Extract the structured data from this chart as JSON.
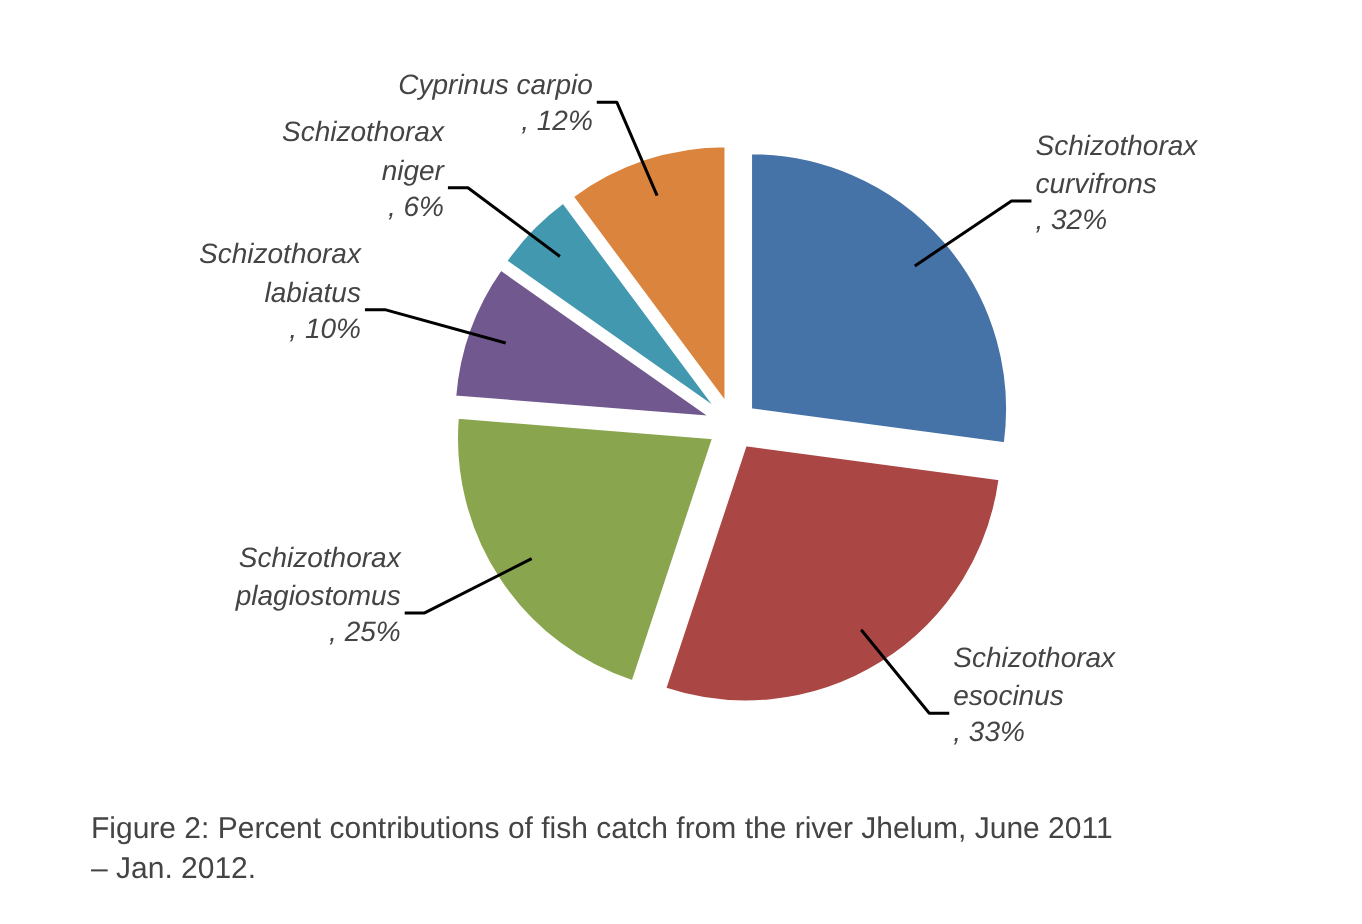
{
  "chart_data": {
    "type": "pie",
    "categories": [
      "Schizothorax curvifrons",
      "Schizothorax esocinus",
      "Schizothorax plagiostomus",
      "Schizothorax labiatus",
      "Schizothorax niger",
      "Cyprinus carpio"
    ],
    "values": [
      32,
      33,
      25,
      10,
      6,
      12
    ],
    "colors": [
      "#4572a7",
      "#aa4643",
      "#89a54e",
      "#71588f",
      "#4198af",
      "#db843d"
    ],
    "value_labels": [
      ", 32%",
      ", 33%",
      ", 25%",
      ", 10%",
      ", 6%",
      ", 12%"
    ],
    "annotations": [
      "Figure 2: Percent contributions of fish catch from the river Jhelum, June 2011 – Jan. 2012."
    ]
  }
}
